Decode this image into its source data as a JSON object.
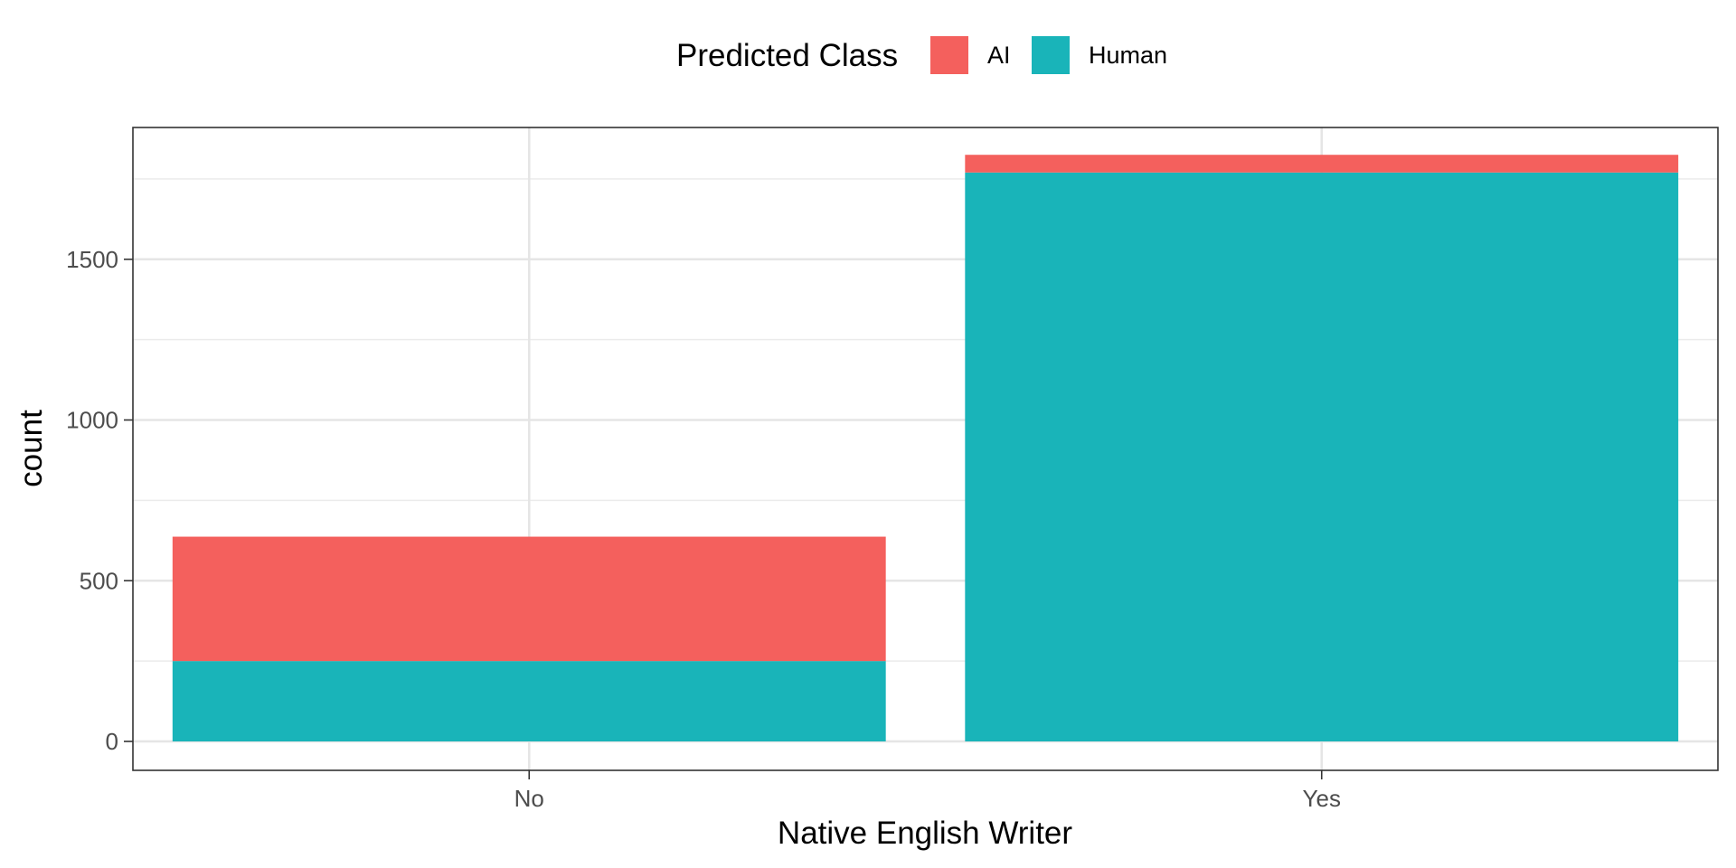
{
  "chart_data": {
    "type": "bar",
    "stacked": true,
    "categories": [
      "No",
      "Yes"
    ],
    "series": [
      {
        "name": "Human",
        "values": [
          250,
          1770
        ],
        "color": "#19B4B9"
      },
      {
        "name": "AI",
        "values": [
          387,
          55
        ],
        "color": "#F4605D"
      }
    ],
    "xlabel": "Native English Writer",
    "ylabel": "count",
    "ylim": [
      -90,
      1910
    ],
    "yticks": [
      0,
      500,
      1000,
      1500
    ],
    "ytick_labels": [
      "0",
      "500",
      "1000",
      "1500"
    ],
    "grid": true,
    "legend": {
      "title": "Predicted Class",
      "placement": "top",
      "entries": [
        {
          "label": "AI",
          "color": "#F4605D"
        },
        {
          "label": "Human",
          "color": "#19B4B9"
        }
      ]
    }
  }
}
